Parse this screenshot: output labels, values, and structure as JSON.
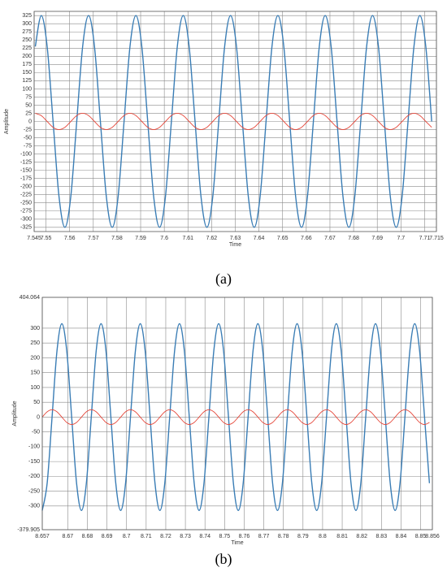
{
  "chart_data": [
    {
      "type": "line",
      "caption": "(a)",
      "x_label": "Time",
      "y_label": "Amplitude",
      "grid": true,
      "xlim": [
        7.545,
        7.715
      ],
      "ylim": [
        -338,
        338
      ],
      "xticks": [
        7.545,
        7.55,
        7.56,
        7.57,
        7.58,
        7.59,
        7.6,
        7.61,
        7.62,
        7.63,
        7.64,
        7.65,
        7.66,
        7.67,
        7.68,
        7.69,
        7.7,
        7.71,
        7.715
      ],
      "yticks": [
        -325,
        -300,
        -275,
        -250,
        -225,
        -200,
        -175,
        -150,
        -125,
        -100,
        -75,
        -50,
        -25,
        0,
        25,
        50,
        75,
        100,
        125,
        150,
        175,
        200,
        225,
        250,
        275,
        300,
        325
      ],
      "x": [
        7.5455,
        7.548,
        7.5505,
        7.553,
        7.5555,
        7.558,
        7.5605,
        7.563,
        7.5655,
        7.568,
        7.5705,
        7.573,
        7.5755,
        7.578,
        7.5805,
        7.583,
        7.5855,
        7.588,
        7.5905,
        7.593,
        7.5955,
        7.598,
        7.6005,
        7.603,
        7.6055,
        7.608,
        7.6105,
        7.613,
        7.6155,
        7.618,
        7.6205,
        7.623,
        7.6255,
        7.628,
        7.6305,
        7.633,
        7.6355,
        7.638,
        7.6405,
        7.643,
        7.6455,
        7.648,
        7.6505,
        7.653,
        7.6555,
        7.658,
        7.6605,
        7.663,
        7.6655,
        7.668,
        7.6705,
        7.673,
        7.6755,
        7.678,
        7.6805,
        7.683,
        7.6855,
        7.688,
        7.6905,
        7.693,
        7.6955,
        7.698,
        7.7005,
        7.703,
        7.7055,
        7.708,
        7.7105,
        7.713
      ],
      "series": [
        {
          "color": "#3a7db5",
          "values": [
            230,
            325,
            230,
            0,
            -230,
            -325,
            -230,
            0,
            230,
            325,
            230,
            0,
            -230,
            -325,
            -230,
            0,
            230,
            325,
            230,
            0,
            -230,
            -325,
            -230,
            0,
            230,
            325,
            230,
            0,
            -230,
            -325,
            -230,
            0,
            230,
            325,
            230,
            0,
            -230,
            -325,
            -230,
            0,
            230,
            325,
            230,
            0,
            -230,
            -325,
            -230,
            0,
            230,
            325,
            230,
            0,
            -230,
            -325,
            -230,
            0,
            230,
            325,
            230,
            0,
            -230,
            -325,
            -230,
            0,
            230,
            325,
            230,
            0
          ]
        },
        {
          "color": "#e5473a",
          "values": [
            25,
            18,
            0,
            -18,
            -25,
            -18,
            0,
            18,
            25,
            18,
            0,
            -18,
            -25,
            -18,
            0,
            18,
            25,
            18,
            0,
            -18,
            -25,
            -18,
            0,
            18,
            25,
            18,
            0,
            -18,
            -25,
            -18,
            0,
            18,
            25,
            18,
            0,
            -18,
            -25,
            -18,
            0,
            18,
            25,
            18,
            0,
            -18,
            -25,
            -18,
            0,
            18,
            25,
            18,
            0,
            -18,
            -25,
            -18,
            0,
            18,
            25,
            18,
            0,
            -18,
            -25,
            -18,
            0,
            18,
            25,
            18,
            0,
            -18
          ]
        }
      ]
    },
    {
      "type": "line",
      "caption": "(b)",
      "x_label": "Time",
      "y_label": "Amplitude",
      "grid": true,
      "xlim": [
        8.657,
        8.856
      ],
      "ylim": [
        -379.905,
        404.064
      ],
      "xticks": [
        8.657,
        8.67,
        8.68,
        8.69,
        8.7,
        8.71,
        8.72,
        8.73,
        8.74,
        8.75,
        8.76,
        8.77,
        8.78,
        8.79,
        8.8,
        8.81,
        8.82,
        8.83,
        8.84,
        8.85,
        8.856
      ],
      "yticks": [
        -379.905,
        -300,
        -250,
        -200,
        -150,
        -100,
        -50,
        0,
        50,
        100,
        150,
        200,
        250,
        300,
        404.064
      ],
      "x": [
        8.657,
        8.6595,
        8.662,
        8.6645,
        8.667,
        8.6695,
        8.672,
        8.6745,
        8.677,
        8.6795,
        8.682,
        8.6845,
        8.687,
        8.6895,
        8.692,
        8.6945,
        8.697,
        8.6995,
        8.702,
        8.7045,
        8.707,
        8.7095,
        8.712,
        8.7145,
        8.717,
        8.7195,
        8.722,
        8.7245,
        8.727,
        8.7295,
        8.732,
        8.7345,
        8.737,
        8.7395,
        8.742,
        8.7445,
        8.747,
        8.7495,
        8.752,
        8.7545,
        8.757,
        8.7595,
        8.762,
        8.7645,
        8.767,
        8.7695,
        8.772,
        8.7745,
        8.777,
        8.7795,
        8.782,
        8.7845,
        8.787,
        8.7895,
        8.792,
        8.7945,
        8.797,
        8.7995,
        8.802,
        8.8045,
        8.807,
        8.8095,
        8.812,
        8.8145,
        8.817,
        8.8195,
        8.822,
        8.8245,
        8.827,
        8.8295,
        8.832,
        8.8345,
        8.837,
        8.8395,
        8.842,
        8.8445,
        8.847,
        8.8495,
        8.852,
        8.8545
      ],
      "series": [
        {
          "color": "#3a7db5",
          "values": [
            -315,
            -223,
            0,
            223,
            315,
            223,
            0,
            -223,
            -315,
            -223,
            0,
            223,
            315,
            223,
            0,
            -223,
            -315,
            -223,
            0,
            223,
            315,
            223,
            0,
            -223,
            -315,
            -223,
            0,
            223,
            315,
            223,
            0,
            -223,
            -315,
            -223,
            0,
            223,
            315,
            223,
            0,
            -223,
            -315,
            -223,
            0,
            223,
            315,
            223,
            0,
            -223,
            -315,
            -223,
            0,
            223,
            315,
            223,
            0,
            -223,
            -315,
            -223,
            0,
            223,
            315,
            223,
            0,
            -223,
            -315,
            -223,
            0,
            223,
            315,
            223,
            0,
            -223,
            -315,
            -223,
            0,
            223,
            315,
            223,
            0,
            -223
          ]
        },
        {
          "color": "#e5473a",
          "values": [
            0,
            18,
            25,
            18,
            0,
            -18,
            -25,
            -18,
            0,
            18,
            25,
            18,
            0,
            -18,
            -25,
            -18,
            0,
            18,
            25,
            18,
            0,
            -18,
            -25,
            -18,
            0,
            18,
            25,
            18,
            0,
            -18,
            -25,
            -18,
            0,
            18,
            25,
            18,
            0,
            -18,
            -25,
            -18,
            0,
            18,
            25,
            18,
            0,
            -18,
            -25,
            -18,
            0,
            18,
            25,
            18,
            0,
            -18,
            -25,
            -18,
            0,
            18,
            25,
            18,
            0,
            -18,
            -25,
            -18,
            0,
            18,
            25,
            18,
            0,
            -18,
            -25,
            -18,
            0,
            18,
            25,
            18,
            0,
            -18,
            -25,
            -18
          ]
        }
      ]
    }
  ]
}
